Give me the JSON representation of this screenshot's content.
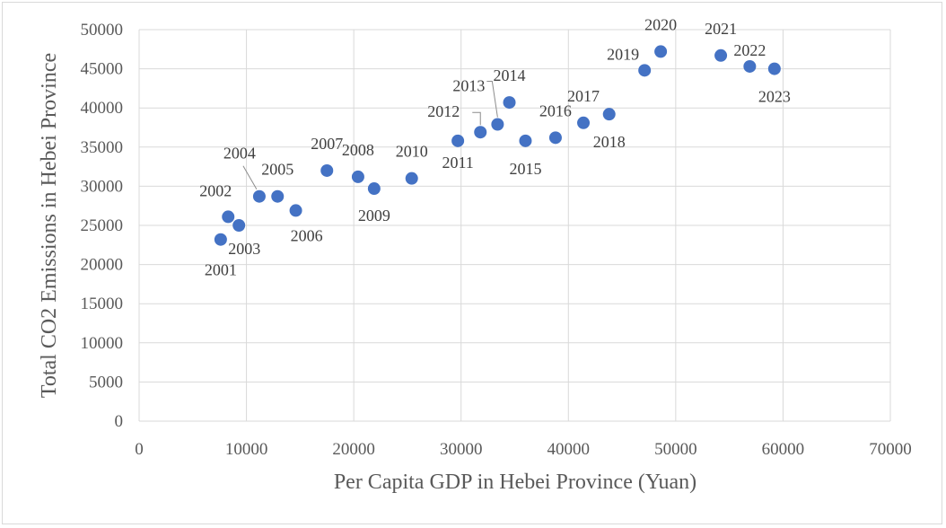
{
  "chart_data": {
    "type": "scatter",
    "title": "",
    "xlabel": "Per Capita GDP in Hebei Province (Yuan)",
    "ylabel": "Total CO2 Emissions in Hebei Province",
    "xlim": [
      0,
      70000
    ],
    "ylim": [
      0,
      50000
    ],
    "xticks": [
      0,
      10000,
      20000,
      30000,
      40000,
      50000,
      60000,
      70000
    ],
    "yticks": [
      0,
      5000,
      10000,
      15000,
      20000,
      25000,
      30000,
      35000,
      40000,
      45000,
      50000
    ],
    "grid": true,
    "legend": "none",
    "marker_color": "#4472c4",
    "points": [
      {
        "label": "2001",
        "x": 7600,
        "y": 23200
      },
      {
        "label": "2002",
        "x": 8300,
        "y": 26100
      },
      {
        "label": "2003",
        "x": 9300,
        "y": 25000
      },
      {
        "label": "2004",
        "x": 11200,
        "y": 28700
      },
      {
        "label": "2005",
        "x": 12900,
        "y": 28700
      },
      {
        "label": "2006",
        "x": 14600,
        "y": 26900
      },
      {
        "label": "2007",
        "x": 17500,
        "y": 32000
      },
      {
        "label": "2008",
        "x": 20400,
        "y": 31200
      },
      {
        "label": "2009",
        "x": 21900,
        "y": 29700
      },
      {
        "label": "2010",
        "x": 25400,
        "y": 31000
      },
      {
        "label": "2011",
        "x": 29700,
        "y": 35800
      },
      {
        "label": "2012",
        "x": 31800,
        "y": 36900
      },
      {
        "label": "2013",
        "x": 33400,
        "y": 37900
      },
      {
        "label": "2014",
        "x": 34500,
        "y": 40700
      },
      {
        "label": "2015",
        "x": 36000,
        "y": 35800
      },
      {
        "label": "2016",
        "x": 38800,
        "y": 36200
      },
      {
        "label": "2017",
        "x": 41400,
        "y": 38100
      },
      {
        "label": "2018",
        "x": 43800,
        "y": 39200
      },
      {
        "label": "2019",
        "x": 47100,
        "y": 44800
      },
      {
        "label": "2020",
        "x": 48600,
        "y": 47200
      },
      {
        "label": "2021",
        "x": 54200,
        "y": 46700
      },
      {
        "label": "2022",
        "x": 56900,
        "y": 45300
      },
      {
        "label": "2023",
        "x": 59200,
        "y": 45000
      }
    ]
  }
}
